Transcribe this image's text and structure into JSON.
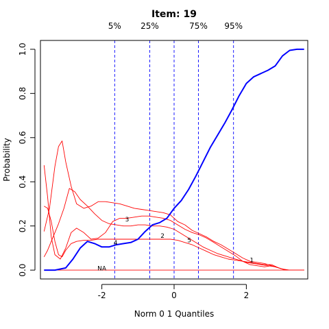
{
  "chart_data": {
    "type": "line",
    "title": "Item:  19",
    "xlabel": "Norm 0 1 Quantiles",
    "ylabel": "Probability",
    "xlim": [
      -3.7,
      3.7
    ],
    "ylim": [
      -0.04,
      1.04
    ],
    "x_ticks": [
      -2,
      0,
      2
    ],
    "x_tick_labels": [
      "-2",
      "0",
      "2"
    ],
    "y_ticks": [
      0.0,
      0.2,
      0.4,
      0.6,
      0.8,
      1.0
    ],
    "y_tick_labels": [
      "0.0",
      "0.2",
      "0.4",
      "0.6",
      "0.8",
      "1.0"
    ],
    "quantiles": [
      {
        "label": "5%",
        "x": -1.645
      },
      {
        "label": "25%",
        "x": -0.674
      },
      {
        "label": "",
        "x": 0.0
      },
      {
        "label": "75%",
        "x": 0.674
      },
      {
        "label": "95%",
        "x": 1.645
      }
    ],
    "colors": {
      "key": "#0000ff",
      "distractor": "#ff0000",
      "quantile": "#0000ff"
    },
    "series": [
      {
        "label": "4",
        "key": true,
        "color": "#0000ff",
        "label_at": [
          -1.62,
          0.125
        ],
        "points": [
          [
            -3.6,
            0.0
          ],
          [
            -3.3,
            0.0
          ],
          [
            -3.0,
            0.01
          ],
          [
            -2.8,
            0.05
          ],
          [
            -2.6,
            0.1
          ],
          [
            -2.4,
            0.13
          ],
          [
            -2.2,
            0.12
          ],
          [
            -2.0,
            0.105
          ],
          [
            -1.8,
            0.105
          ],
          [
            -1.6,
            0.115
          ],
          [
            -1.4,
            0.12
          ],
          [
            -1.2,
            0.125
          ],
          [
            -1.0,
            0.14
          ],
          [
            -0.8,
            0.175
          ],
          [
            -0.6,
            0.205
          ],
          [
            -0.4,
            0.215
          ],
          [
            -0.2,
            0.235
          ],
          [
            0.0,
            0.28
          ],
          [
            0.2,
            0.315
          ],
          [
            0.4,
            0.365
          ],
          [
            0.6,
            0.425
          ],
          [
            0.8,
            0.49
          ],
          [
            1.0,
            0.555
          ],
          [
            1.2,
            0.61
          ],
          [
            1.4,
            0.665
          ],
          [
            1.6,
            0.725
          ],
          [
            1.8,
            0.79
          ],
          [
            2.0,
            0.845
          ],
          [
            2.2,
            0.875
          ],
          [
            2.4,
            0.89
          ],
          [
            2.6,
            0.905
          ],
          [
            2.8,
            0.925
          ],
          [
            3.0,
            0.97
          ],
          [
            3.2,
            0.995
          ],
          [
            3.4,
            1.0
          ],
          [
            3.6,
            1.0
          ]
        ]
      },
      {
        "label": "3",
        "key": false,
        "color": "#ff0000",
        "label_at": [
          -1.3,
          0.23
        ],
        "points": [
          [
            -3.6,
            0.475
          ],
          [
            -3.5,
            0.33
          ],
          [
            -3.4,
            0.15
          ],
          [
            -3.3,
            0.07
          ],
          [
            -3.15,
            0.05
          ],
          [
            -3.0,
            0.1
          ],
          [
            -2.85,
            0.17
          ],
          [
            -2.7,
            0.19
          ],
          [
            -2.5,
            0.17
          ],
          [
            -2.3,
            0.14
          ],
          [
            -2.1,
            0.145
          ],
          [
            -1.9,
            0.17
          ],
          [
            -1.7,
            0.22
          ],
          [
            -1.5,
            0.235
          ],
          [
            -1.3,
            0.235
          ],
          [
            -1.1,
            0.24
          ],
          [
            -0.9,
            0.245
          ],
          [
            -0.7,
            0.245
          ],
          [
            -0.5,
            0.24
          ],
          [
            -0.3,
            0.235
          ],
          [
            -0.1,
            0.225
          ],
          [
            0.1,
            0.205
          ],
          [
            0.3,
            0.185
          ],
          [
            0.5,
            0.17
          ],
          [
            0.7,
            0.16
          ],
          [
            0.9,
            0.145
          ],
          [
            1.1,
            0.125
          ],
          [
            1.3,
            0.105
          ],
          [
            1.5,
            0.085
          ],
          [
            1.7,
            0.065
          ],
          [
            1.9,
            0.04
          ],
          [
            2.1,
            0.025
          ],
          [
            2.3,
            0.02
          ],
          [
            2.5,
            0.015
          ],
          [
            2.7,
            0.02
          ],
          [
            2.9,
            0.01
          ],
          [
            3.1,
            0.0
          ],
          [
            3.3,
            0.0
          ],
          [
            3.6,
            0.0
          ]
        ]
      },
      {
        "label": "2",
        "key": false,
        "color": "#ff0000",
        "label_at": [
          -0.32,
          0.155
        ],
        "points": [
          [
            -3.6,
            0.175
          ],
          [
            -3.45,
            0.28
          ],
          [
            -3.3,
            0.47
          ],
          [
            -3.2,
            0.56
          ],
          [
            -3.1,
            0.585
          ],
          [
            -3.0,
            0.49
          ],
          [
            -2.85,
            0.38
          ],
          [
            -2.7,
            0.3
          ],
          [
            -2.5,
            0.28
          ],
          [
            -2.3,
            0.29
          ],
          [
            -2.1,
            0.31
          ],
          [
            -1.9,
            0.31
          ],
          [
            -1.7,
            0.305
          ],
          [
            -1.5,
            0.3
          ],
          [
            -1.3,
            0.29
          ],
          [
            -1.1,
            0.28
          ],
          [
            -0.9,
            0.275
          ],
          [
            -0.7,
            0.27
          ],
          [
            -0.5,
            0.265
          ],
          [
            -0.3,
            0.26
          ],
          [
            -0.1,
            0.25
          ],
          [
            0.1,
            0.22
          ],
          [
            0.3,
            0.205
          ],
          [
            0.5,
            0.18
          ],
          [
            0.7,
            0.165
          ],
          [
            0.9,
            0.15
          ],
          [
            1.1,
            0.13
          ],
          [
            1.3,
            0.115
          ],
          [
            1.5,
            0.095
          ],
          [
            1.7,
            0.075
          ],
          [
            1.9,
            0.055
          ],
          [
            2.1,
            0.04
          ],
          [
            2.3,
            0.035
          ],
          [
            2.5,
            0.03
          ],
          [
            2.7,
            0.02
          ],
          [
            2.9,
            0.01
          ],
          [
            3.1,
            0.0
          ],
          [
            3.3,
            0.0
          ],
          [
            3.6,
            0.0
          ]
        ]
      },
      {
        "label": "5",
        "key": false,
        "color": "#ff0000",
        "label_at": [
          0.42,
          0.135
        ],
        "points": [
          [
            -3.6,
            0.06
          ],
          [
            -3.5,
            0.09
          ],
          [
            -3.35,
            0.15
          ],
          [
            -3.2,
            0.21
          ],
          [
            -3.05,
            0.28
          ],
          [
            -2.9,
            0.37
          ],
          [
            -2.75,
            0.355
          ],
          [
            -2.6,
            0.32
          ],
          [
            -2.4,
            0.29
          ],
          [
            -2.2,
            0.255
          ],
          [
            -2.0,
            0.225
          ],
          [
            -1.8,
            0.21
          ],
          [
            -1.6,
            0.205
          ],
          [
            -1.4,
            0.2
          ],
          [
            -1.2,
            0.2
          ],
          [
            -1.0,
            0.205
          ],
          [
            -0.8,
            0.205
          ],
          [
            -0.6,
            0.2
          ],
          [
            -0.4,
            0.2
          ],
          [
            -0.2,
            0.195
          ],
          [
            0.0,
            0.185
          ],
          [
            0.2,
            0.165
          ],
          [
            0.4,
            0.145
          ],
          [
            0.6,
            0.125
          ],
          [
            0.8,
            0.105
          ],
          [
            1.0,
            0.09
          ],
          [
            1.2,
            0.075
          ],
          [
            1.4,
            0.065
          ],
          [
            1.6,
            0.055
          ],
          [
            1.8,
            0.045
          ],
          [
            2.0,
            0.035
          ],
          [
            2.2,
            0.03
          ],
          [
            2.4,
            0.025
          ],
          [
            2.6,
            0.02
          ],
          [
            2.8,
            0.015
          ],
          [
            3.0,
            0.005
          ],
          [
            3.2,
            0.0
          ],
          [
            3.6,
            0.0
          ]
        ]
      },
      {
        "label": "1",
        "key": false,
        "color": "#ff0000",
        "label_at": [
          2.15,
          0.045
        ],
        "points": [
          [
            -3.6,
            0.29
          ],
          [
            -3.5,
            0.28
          ],
          [
            -3.4,
            0.22
          ],
          [
            -3.3,
            0.13
          ],
          [
            -3.2,
            0.07
          ],
          [
            -3.1,
            0.06
          ],
          [
            -3.0,
            0.09
          ],
          [
            -2.85,
            0.12
          ],
          [
            -2.7,
            0.13
          ],
          [
            -2.5,
            0.135
          ],
          [
            -2.3,
            0.135
          ],
          [
            -2.1,
            0.14
          ],
          [
            -1.9,
            0.14
          ],
          [
            -1.7,
            0.14
          ],
          [
            -1.5,
            0.14
          ],
          [
            -1.3,
            0.14
          ],
          [
            -1.1,
            0.14
          ],
          [
            -0.9,
            0.14
          ],
          [
            -0.7,
            0.14
          ],
          [
            -0.5,
            0.14
          ],
          [
            -0.3,
            0.14
          ],
          [
            -0.1,
            0.14
          ],
          [
            0.1,
            0.135
          ],
          [
            0.3,
            0.125
          ],
          [
            0.5,
            0.115
          ],
          [
            0.7,
            0.1
          ],
          [
            0.9,
            0.085
          ],
          [
            1.1,
            0.07
          ],
          [
            1.3,
            0.06
          ],
          [
            1.5,
            0.05
          ],
          [
            1.7,
            0.045
          ],
          [
            1.9,
            0.04
          ],
          [
            2.1,
            0.035
          ],
          [
            2.3,
            0.03
          ],
          [
            2.5,
            0.025
          ],
          [
            2.7,
            0.025
          ],
          [
            2.9,
            0.01
          ],
          [
            3.1,
            0.0
          ],
          [
            3.3,
            0.0
          ],
          [
            3.6,
            0.0
          ]
        ]
      },
      {
        "label": "NA",
        "key": false,
        "color": "#ff0000",
        "label_at": [
          -2.0,
          0.008
        ],
        "points": [
          [
            -3.6,
            0.0
          ],
          [
            -3.2,
            0.0
          ],
          [
            -2.8,
            0.0
          ],
          [
            -2.4,
            0.0
          ],
          [
            -2.0,
            0.0
          ],
          [
            -1.6,
            0.0
          ],
          [
            -1.2,
            0.0
          ],
          [
            -0.8,
            0.0
          ],
          [
            -0.4,
            0.0
          ],
          [
            0.0,
            0.0
          ],
          [
            0.4,
            0.0
          ],
          [
            0.8,
            0.0
          ],
          [
            1.2,
            0.0
          ],
          [
            1.6,
            0.0
          ],
          [
            2.0,
            0.0
          ],
          [
            2.4,
            0.0
          ],
          [
            2.8,
            0.0
          ],
          [
            3.2,
            0.0
          ],
          [
            3.6,
            0.0
          ]
        ]
      }
    ]
  }
}
